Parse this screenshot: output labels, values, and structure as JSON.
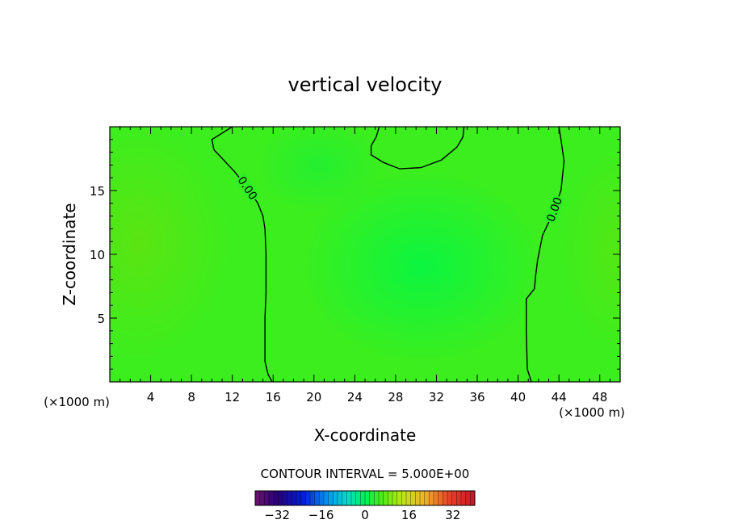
{
  "chart_data": {
    "type": "heatmap",
    "title": "vertical velocity",
    "xlabel": "X-coordinate",
    "ylabel": "Z-coordinate",
    "x_unit_left": "(×1000 m)",
    "x_unit_right": "(×1000 m)",
    "xlim": [
      0,
      50
    ],
    "ylim": [
      0,
      20
    ],
    "x_ticks": [
      4,
      8,
      12,
      16,
      20,
      24,
      28,
      32,
      36,
      40,
      44,
      48
    ],
    "y_ticks": [
      5,
      10,
      15
    ],
    "grid": false,
    "contour_lines": [
      {
        "label": "0.00",
        "points": [
          [
            12,
            20
          ],
          [
            10,
            19
          ],
          [
            10.2,
            18.2
          ],
          [
            12.2,
            16.5
          ],
          [
            13.5,
            15.2
          ],
          [
            14.5,
            14
          ],
          [
            15,
            13
          ],
          [
            15.2,
            12
          ],
          [
            15.3,
            10
          ],
          [
            15.3,
            7
          ],
          [
            15.2,
            5
          ],
          [
            15.2,
            1.6
          ],
          [
            15.5,
            0.6
          ],
          [
            15.9,
            0
          ]
        ]
      },
      {
        "label": "0.00",
        "points": [
          [
            41.3,
            0
          ],
          [
            40.9,
            1
          ],
          [
            40.8,
            4
          ],
          [
            40.8,
            6.5
          ],
          [
            41.6,
            7.3
          ],
          [
            41.7,
            8.2
          ],
          [
            41.9,
            9.5
          ],
          [
            42.4,
            11.5
          ],
          [
            43.3,
            13
          ],
          [
            44.2,
            15
          ],
          [
            44.5,
            17.3
          ],
          [
            44.2,
            19
          ],
          [
            44,
            20
          ]
        ]
      },
      {
        "label": "",
        "points": [
          [
            26.4,
            20
          ],
          [
            26.1,
            19.2
          ],
          [
            25.6,
            18.5
          ],
          [
            25.6,
            17.8
          ],
          [
            26.8,
            17.2
          ],
          [
            28.4,
            16.7
          ],
          [
            30.5,
            16.8
          ],
          [
            32.5,
            17.4
          ],
          [
            34,
            18.4
          ],
          [
            34.6,
            19.2
          ],
          [
            34.7,
            20
          ]
        ]
      }
    ],
    "footer_label": "CONTOUR INTERVAL = 5.000E+00",
    "colorbar": {
      "min": -40,
      "max": 40,
      "tick_values": [
        -32,
        -16,
        0,
        16,
        32
      ],
      "tick_labels": [
        "−32",
        "−16",
        "0",
        "16",
        "32"
      ]
    },
    "colors": {
      "field_base": "#3cee1e",
      "field_highlight_left": "#52e612",
      "field_center": "#14f13c"
    }
  }
}
